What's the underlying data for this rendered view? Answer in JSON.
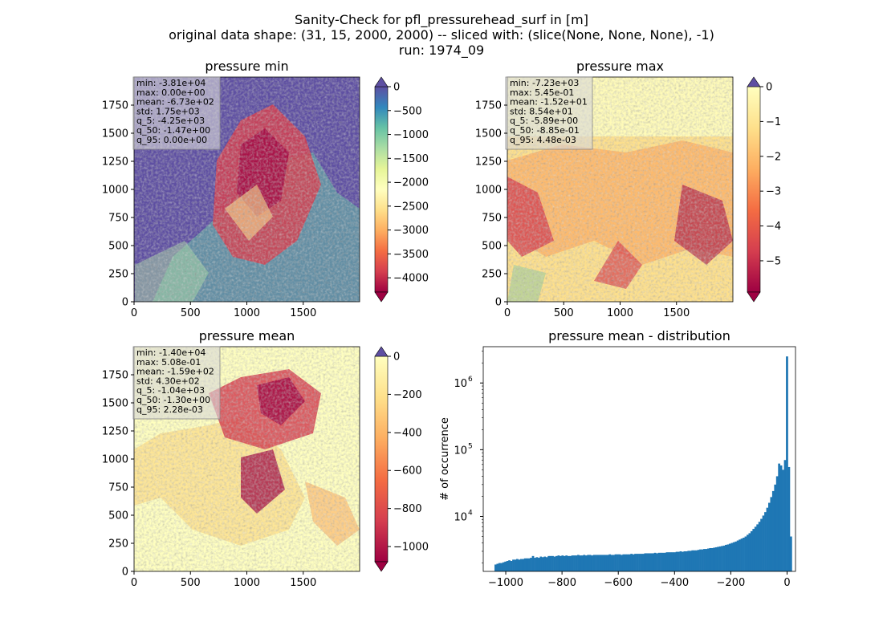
{
  "figure": {
    "suptitle_lines": [
      "Sanity-Check for pfl_pressurehead_surf in [m]",
      "original data shape: (31, 15, 2000, 2000) -- sliced with: (slice(None, None, None), -1)",
      "run: 1974_09"
    ]
  },
  "colors": {
    "spectral_low": "#9e0142",
    "spectral_high": "#5e4fa2",
    "hist_bar": "#1f77b4",
    "stats_box_bg": "#d9d9d9"
  },
  "chart_data": [
    {
      "type": "heatmap",
      "title": "pressure min",
      "colormap": "Spectral",
      "xlim": [
        0,
        2000
      ],
      "ylim": [
        0,
        2000
      ],
      "xticks": [
        0,
        500,
        1000,
        1500
      ],
      "yticks": [
        0,
        250,
        500,
        750,
        1000,
        1250,
        1500,
        1750
      ],
      "colorbar": {
        "range": [
          -4300,
          0
        ],
        "ticks": [
          0,
          -500,
          -1000,
          -1500,
          -2000,
          -2500,
          -3000,
          -3500,
          -4000
        ],
        "extend": "both"
      },
      "stats": [
        "min: -3.81e+04",
        "max: 0.00e+00",
        "mean: -6.73e+02",
        "std: 1.75e+03",
        "q_5: -4.25e+03",
        "q_50: -1.47e+00",
        "q_95: 0.00e+00"
      ]
    },
    {
      "type": "heatmap",
      "title": "pressure max",
      "colormap": "Spectral",
      "xlim": [
        0,
        2000
      ],
      "ylim": [
        0,
        2000
      ],
      "xticks": [
        0,
        500,
        1000,
        1500
      ],
      "yticks": [
        0,
        250,
        500,
        750,
        1000,
        1250,
        1500,
        1750
      ],
      "colorbar": {
        "range": [
          -5.9,
          0
        ],
        "ticks": [
          0,
          -1,
          -2,
          -3,
          -4,
          -5
        ],
        "extend": "both"
      },
      "stats": [
        "min: -7.23e+03",
        "max: 5.45e-01",
        "mean: -1.52e+01",
        "std: 8.54e+01",
        "q_5: -5.89e+00",
        "q_50: -8.85e-01",
        "q_95: 4.48e-03"
      ]
    },
    {
      "type": "heatmap",
      "title": "pressure mean",
      "colormap": "Spectral",
      "xlim": [
        0,
        2000
      ],
      "ylim": [
        0,
        2000
      ],
      "xticks": [
        0,
        500,
        1000,
        1500
      ],
      "yticks": [
        0,
        250,
        500,
        750,
        1000,
        1250,
        1500,
        1750
      ],
      "colorbar": {
        "range": [
          -1080,
          0
        ],
        "ticks": [
          0,
          -200,
          -400,
          -600,
          -800,
          -1000
        ],
        "extend": "both"
      },
      "stats": [
        "min: -1.40e+04",
        "max: 5.08e-01",
        "mean: -1.59e+02",
        "std: 4.30e+02",
        "q_5: -1.04e+03",
        "q_50: -1.30e+00",
        "q_95: 2.28e-03"
      ]
    },
    {
      "type": "bar",
      "title": "pressure mean - distribution",
      "xlabel": "",
      "ylabel": "# of occurrence",
      "yscale": "log",
      "xlim": [
        -1080,
        30
      ],
      "ylim": [
        1500,
        3500000
      ],
      "xticks": [
        -1000,
        -800,
        -600,
        -400,
        -200,
        0
      ],
      "xtick_labels": [
        "−1000",
        "−800",
        "−600",
        "−400",
        "−200",
        "0"
      ],
      "ytick_labels": [
        {
          "base": "10",
          "exp": "4",
          "value": 10000
        },
        {
          "base": "10",
          "exp": "5",
          "value": 100000
        },
        {
          "base": "10",
          "exp": "6",
          "value": 1000000
        }
      ],
      "bins": {
        "start": -1040,
        "width": 7,
        "count": 150
      },
      "values": [
        1900,
        1950,
        2000,
        2000,
        2050,
        2100,
        2150,
        2200,
        2150,
        2250,
        2250,
        2300,
        2250,
        2300,
        2300,
        2350,
        2350,
        2350,
        2400,
        2550,
        2400,
        2450,
        2400,
        2500,
        2450,
        2500,
        2450,
        2550,
        2550,
        2550,
        2500,
        2550,
        2600,
        2550,
        2600,
        2550,
        2600,
        2550,
        2550,
        2600,
        2600,
        2600,
        2650,
        2600,
        2600,
        2650,
        2600,
        2650,
        2650,
        2600,
        2650,
        2650,
        2650,
        2650,
        2650,
        2650,
        2650,
        2650,
        2700,
        2650,
        2650,
        2700,
        2700,
        2700,
        2650,
        2700,
        2700,
        2700,
        2700,
        2750,
        2700,
        2750,
        2750,
        2750,
        2750,
        2750,
        2800,
        2800,
        2800,
        2800,
        2800,
        2850,
        2800,
        2850,
        2850,
        2850,
        2850,
        2900,
        2900,
        2900,
        2900,
        2900,
        2950,
        2950,
        3000,
        2950,
        3000,
        3000,
        3050,
        3050,
        3100,
        3100,
        3100,
        3150,
        3200,
        3200,
        3250,
        3250,
        3300,
        3350,
        3350,
        3400,
        3450,
        3500,
        3550,
        3600,
        3650,
        3750,
        3800,
        3900,
        4000,
        4100,
        4200,
        4350,
        4500,
        4650,
        4800,
        5000,
        5300,
        5600,
        6000,
        6500,
        7000,
        7600,
        8300,
        9200,
        10300,
        11600,
        13500,
        16000,
        19500,
        24000,
        30000,
        40000,
        62000,
        58000,
        50000,
        70000,
        2500000,
        55000,
        5000,
        1500
      ]
    }
  ]
}
